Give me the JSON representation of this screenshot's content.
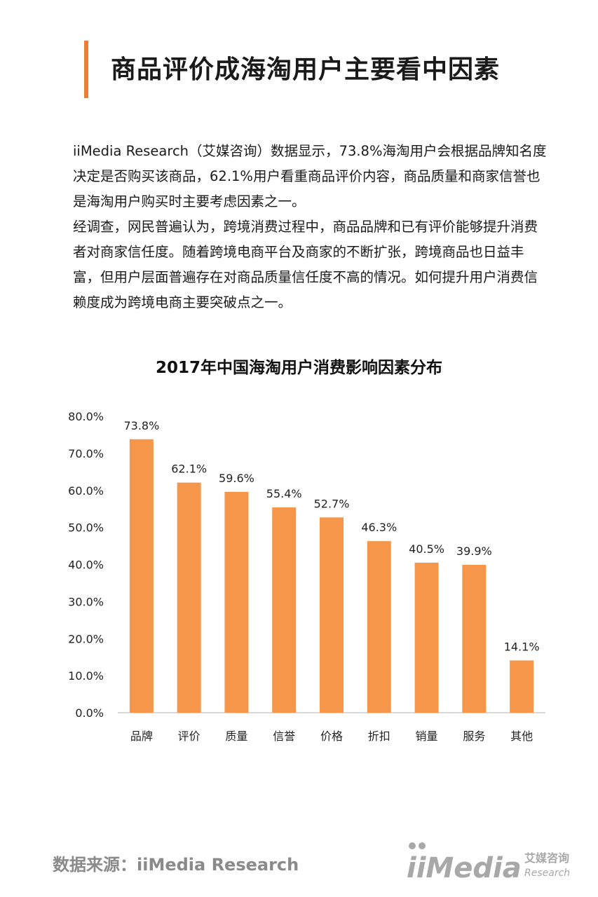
{
  "page_title": "商品评价成海淘用户主要看中因素",
  "paragraphs": [
    "iiMedia Research（艾媒咨询）数据显示，73.8%海淘用户会根据品牌知名度决定是否购买该商品，62.1%用户看重商品评价内容，商品质量和商家信誉也是海淘用户购买时主要考虑因素之一。",
    "经调查，网民普遍认为，跨境消费过程中，商品品牌和已有评价能够提升消费者对商家信任度。随着跨境电商平台及商家的不断扩张，跨境商品也日益丰富，但用户层面普遍存在对商品质量信任度不高的情况。如何提升用户消费信赖度成为跨境电商主要突破点之一。"
  ],
  "source_text": "数据来源：iiMedia Research",
  "logo": {
    "brand": "iiMedia",
    "cn": "艾媒咨询",
    "en": "Research"
  },
  "colors": {
    "accent": "#e9803a",
    "bar": "#f5964a",
    "axis": "#b0b0b0"
  },
  "chart_data": {
    "type": "bar",
    "title": "2017年中国海淘用户消费影响因素分布",
    "categories": [
      "品牌",
      "评价",
      "质量",
      "信誉",
      "价格",
      "折扣",
      "销量",
      "服务",
      "其他"
    ],
    "values": [
      73.8,
      62.1,
      59.6,
      55.4,
      52.7,
      46.3,
      40.5,
      39.9,
      14.1
    ],
    "value_labels": [
      "73.8%",
      "62.1%",
      "59.6%",
      "55.4%",
      "52.7%",
      "46.3%",
      "40.5%",
      "39.9%",
      "14.1%"
    ],
    "yticks": [
      "0.0%",
      "10.0%",
      "20.0%",
      "30.0%",
      "40.0%",
      "50.0%",
      "60.0%",
      "70.0%",
      "80.0%"
    ],
    "ylim": [
      0,
      80
    ],
    "grid": false,
    "legend": "none"
  }
}
